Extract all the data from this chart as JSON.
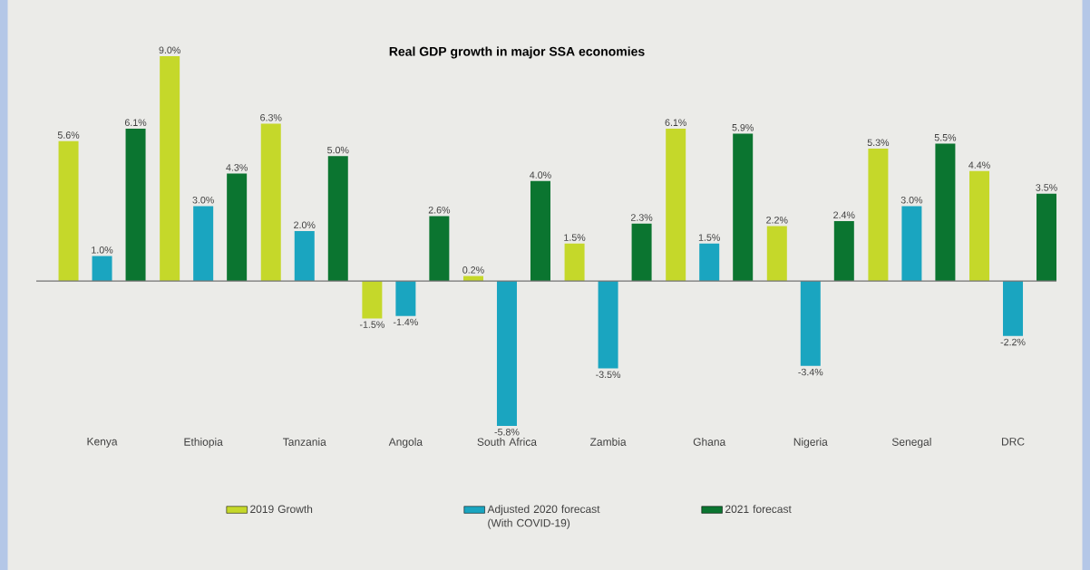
{
  "chart_data": {
    "type": "bar",
    "title": "Real GDP growth in major SSA economies",
    "categories": [
      "Kenya",
      "Ethiopia",
      "Tanzania",
      "Angola",
      "South Africa",
      "Zambia",
      "Ghana",
      "Nigeria",
      "Senegal",
      "DRC"
    ],
    "series": [
      {
        "name": "2019 Growth",
        "color": "#c5d82a",
        "values": [
          5.6,
          9.0,
          6.3,
          -1.5,
          0.2,
          1.5,
          6.1,
          2.2,
          5.3,
          4.4
        ],
        "value_labels": [
          "5.6%",
          "9.0%",
          "6.3%",
          "-1.5%",
          "0.2%",
          "1.5%",
          "6.1%",
          "2.2%",
          "5.3%",
          "4.4%"
        ]
      },
      {
        "name": "Adjusted 2020 forecast (With COVID-19)",
        "color": "#1aa5c0",
        "values": [
          1.0,
          3.0,
          2.0,
          -1.4,
          -5.8,
          -3.5,
          1.5,
          -3.4,
          3.0,
          -2.2
        ],
        "value_labels": [
          "1.0%",
          "3.0%",
          "2.0%",
          "-1.4%",
          "-5.8%",
          "-3.5%",
          "1.5%",
          "-3.4%",
          "3.0%",
          "-2.2%"
        ]
      },
      {
        "name": "2021 forecast",
        "color": "#0b7530",
        "values": [
          6.1,
          4.3,
          5.0,
          2.6,
          4.0,
          2.3,
          5.9,
          2.4,
          5.5,
          3.5
        ],
        "value_labels": [
          "6.1%",
          "4.3%",
          "5.0%",
          "2.6%",
          "4.0%",
          "2.3%",
          "5.9%",
          "2.4%",
          "5.5%",
          "3.5%"
        ]
      }
    ],
    "legend": "bottom"
  }
}
